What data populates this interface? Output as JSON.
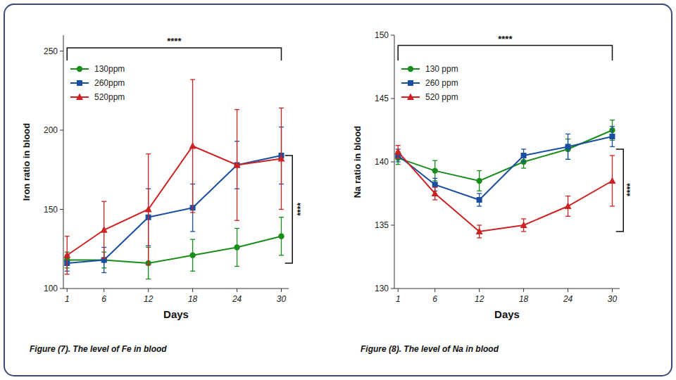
{
  "chart_data": [
    {
      "type": "line",
      "title": "Figure (7). The level of Fe in blood",
      "x_label": "Days",
      "y_label": "Iron ratio in blood",
      "x": [
        1,
        6,
        12,
        18,
        24,
        30
      ],
      "xlim": [
        0.5,
        31
      ],
      "xticks": [
        1,
        6,
        12,
        18,
        24,
        30
      ],
      "ylim": [
        100,
        260
      ],
      "yticks": [
        100,
        150,
        200,
        250
      ],
      "grid": false,
      "legend": "upper left",
      "series": [
        {
          "name": "130ppm",
          "color": "#1a8c1a",
          "marker": "circle",
          "values": [
            118,
            118,
            116,
            121,
            126,
            133
          ],
          "errors": [
            5,
            5,
            10,
            10,
            12,
            12
          ]
        },
        {
          "name": "260ppm",
          "color": "#1a4fa0",
          "marker": "square",
          "values": [
            116,
            118,
            145,
            151,
            178,
            184
          ],
          "errors": [
            5,
            8,
            18,
            15,
            15,
            18
          ]
        },
        {
          "name": "520ppm",
          "color": "#cc2222",
          "marker": "triangle",
          "values": [
            121,
            137,
            150,
            190,
            178,
            182
          ],
          "errors": [
            12,
            18,
            35,
            42,
            35,
            32
          ]
        }
      ],
      "annotations": [
        {
          "text": "****",
          "x": 15.5,
          "y": 254,
          "bracket": {
            "direction": "horizontal",
            "from": 1,
            "to": 30,
            "at": 252,
            "tip": 244
          }
        },
        {
          "text": "****",
          "x": 32.2,
          "y": 150,
          "bracket": {
            "direction": "vertical",
            "from": 116,
            "to": 184,
            "at": 31.5,
            "tip": 30.5
          }
        }
      ]
    },
    {
      "type": "line",
      "title": "Figure (8). The level of Na in blood",
      "x_label": "Days",
      "y_label": "Na ratio in blood",
      "x": [
        1,
        6,
        12,
        18,
        24,
        30
      ],
      "xlim": [
        0.5,
        31
      ],
      "xticks": [
        1,
        6,
        12,
        18,
        24,
        30
      ],
      "ylim": [
        130,
        150
      ],
      "yticks": [
        130,
        135,
        140,
        145,
        150
      ],
      "grid": false,
      "legend": "upper left",
      "series": [
        {
          "name": "130 ppm",
          "color": "#1a8c1a",
          "marker": "circle",
          "values": [
            140.3,
            139.3,
            138.5,
            140.0,
            141.0,
            142.5
          ],
          "errors": [
            0.5,
            0.8,
            0.8,
            0.5,
            0.8,
            0.8
          ]
        },
        {
          "name": "260 ppm",
          "color": "#1a4fa0",
          "marker": "square",
          "values": [
            140.5,
            138.2,
            137.0,
            140.5,
            141.2,
            142.0
          ],
          "errors": [
            0.5,
            0.5,
            0.5,
            0.5,
            1.0,
            0.8
          ]
        },
        {
          "name": "520 ppm",
          "color": "#cc2222",
          "marker": "triangle",
          "values": [
            140.8,
            137.5,
            134.5,
            135.0,
            136.5,
            138.5
          ],
          "errors": [
            0.5,
            0.5,
            0.5,
            0.5,
            0.8,
            2.0
          ]
        }
      ],
      "annotations": [
        {
          "text": "****",
          "x": 15.5,
          "y": 149.4,
          "bracket": {
            "direction": "horizontal",
            "from": 1,
            "to": 30,
            "at": 149.2,
            "tip": 148.0
          }
        },
        {
          "text": "****",
          "x": 32.0,
          "y": 137.8,
          "bracket": {
            "direction": "vertical",
            "from": 134.5,
            "to": 141,
            "at": 31.5,
            "tip": 30.5
          }
        }
      ]
    }
  ]
}
